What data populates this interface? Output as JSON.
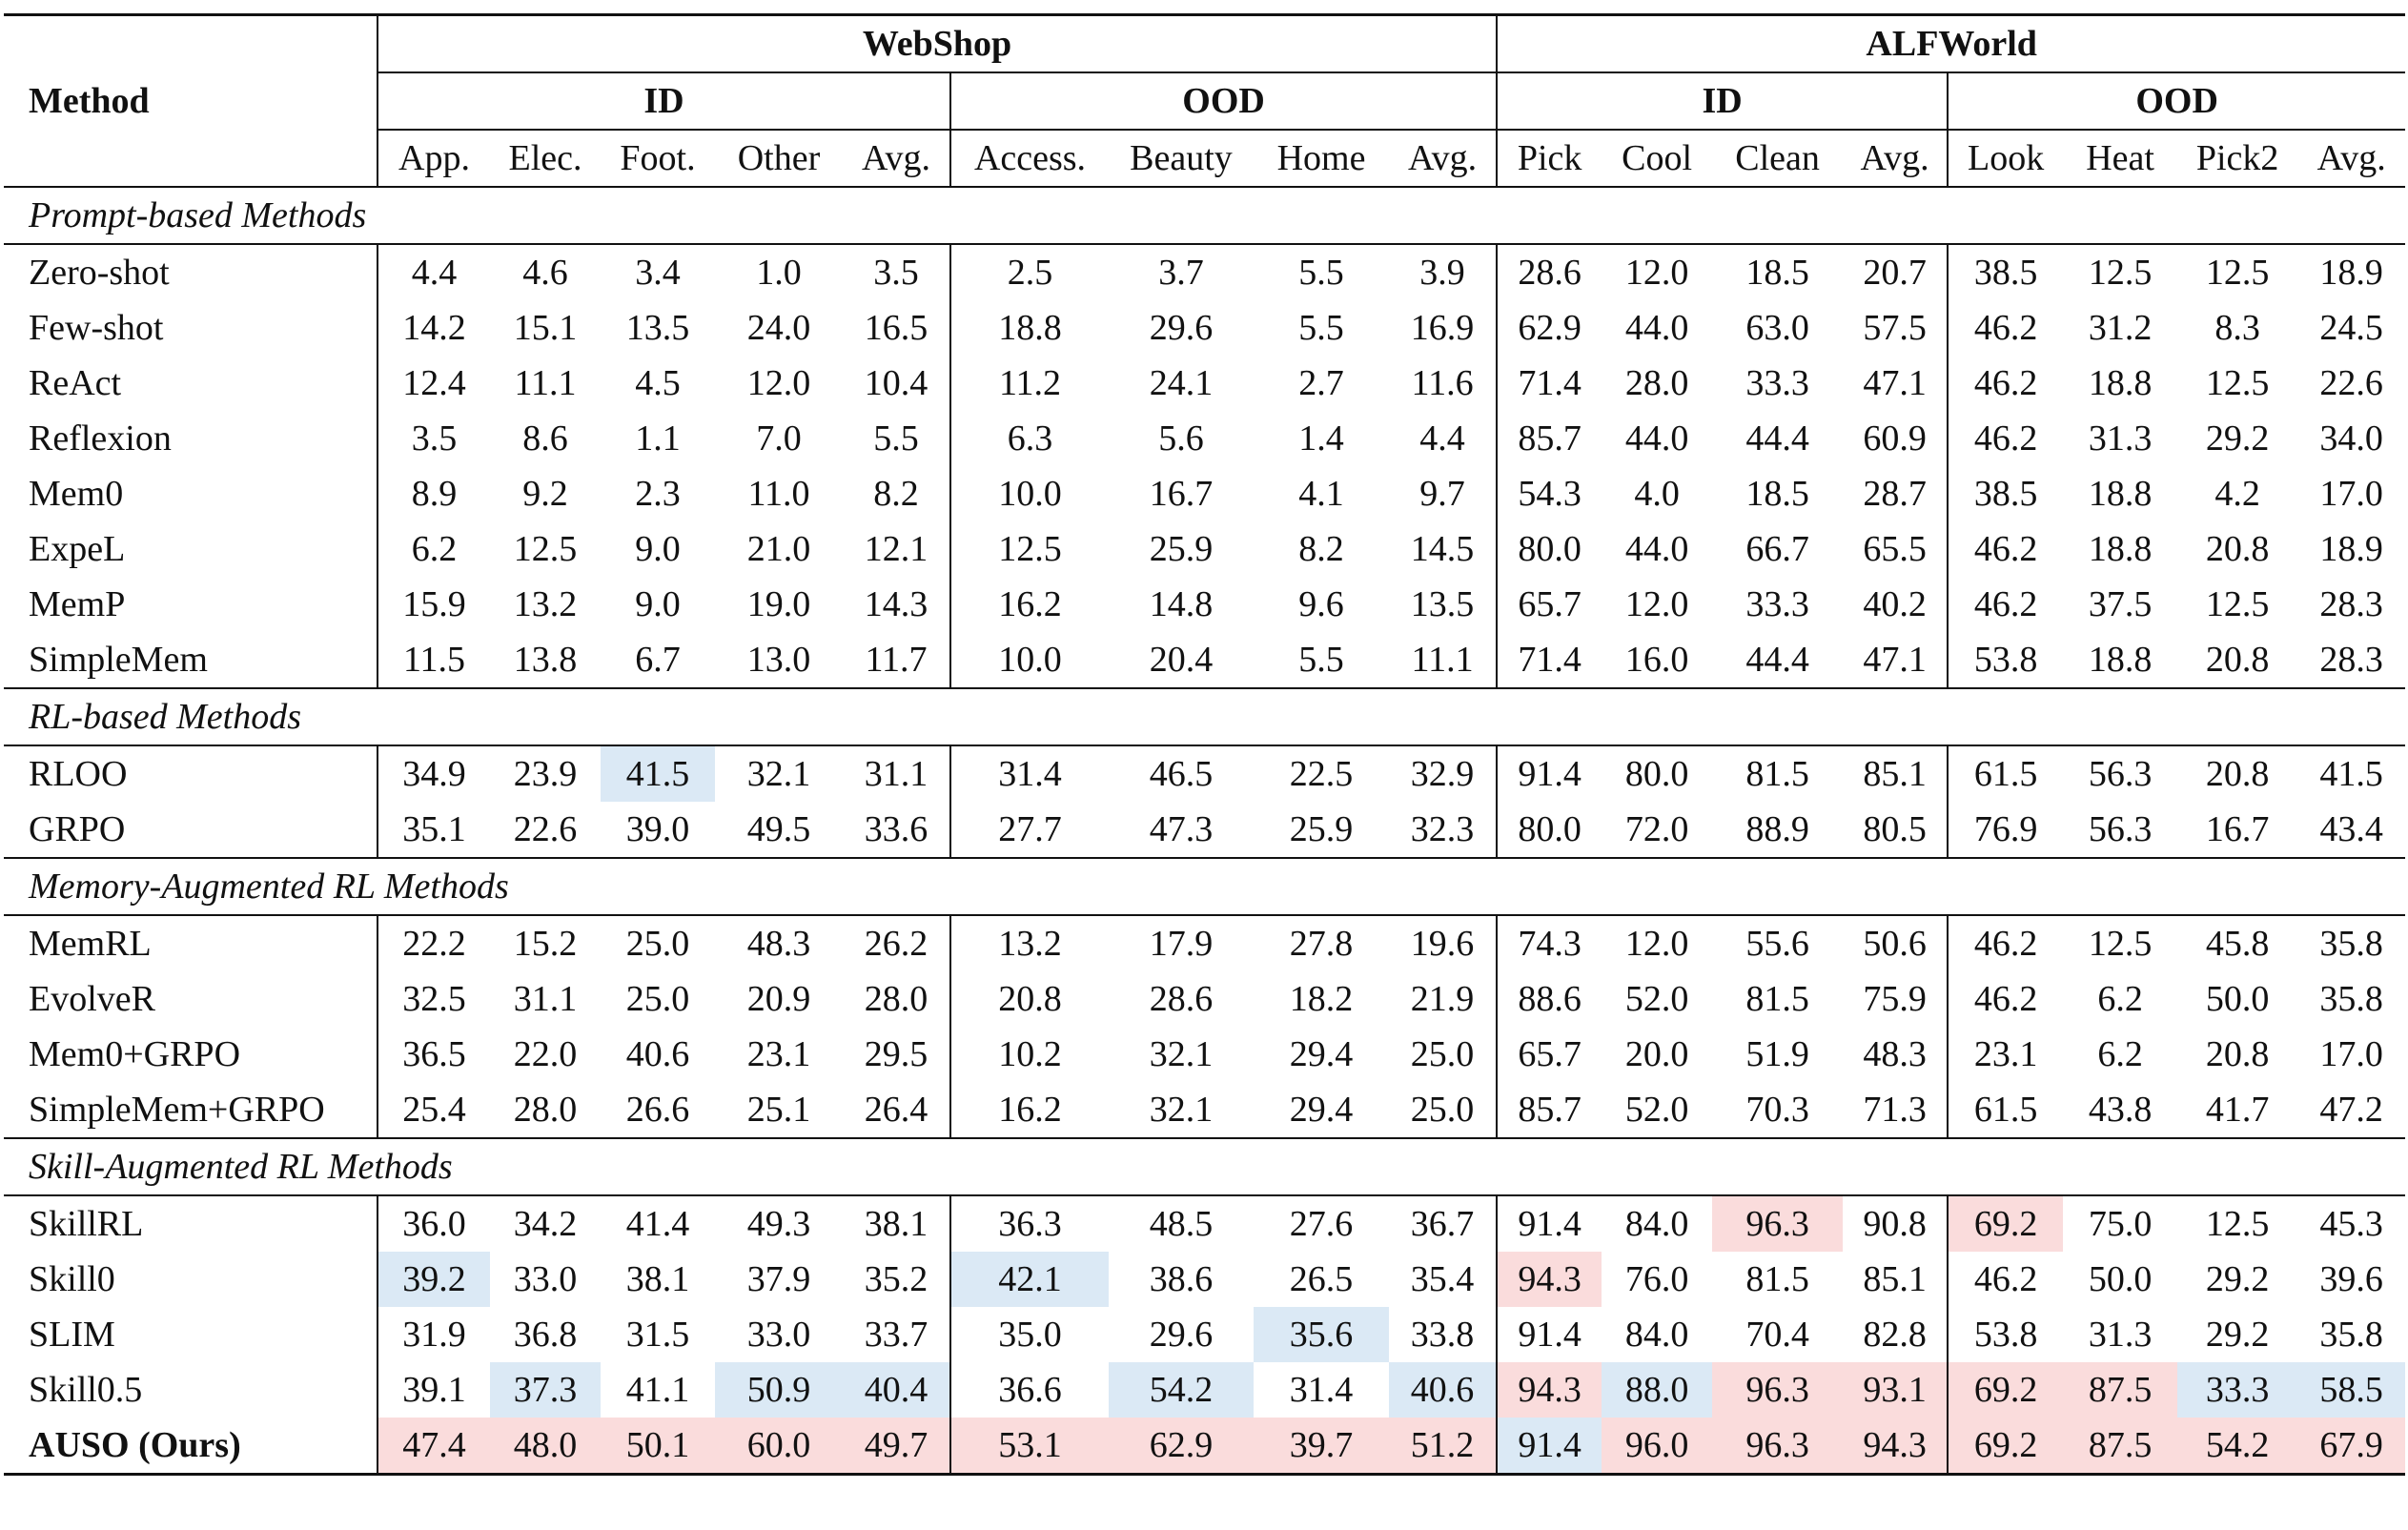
{
  "header": {
    "method": "Method",
    "datasets": [
      {
        "name": "WebShop",
        "splits": [
          {
            "name": "ID",
            "columns": [
              "App.",
              "Elec.",
              "Foot.",
              "Other",
              "Avg."
            ]
          },
          {
            "name": "OOD",
            "columns": [
              "Access.",
              "Beauty",
              "Home",
              "Avg."
            ]
          }
        ]
      },
      {
        "name": "ALFWorld",
        "splits": [
          {
            "name": "ID",
            "columns": [
              "Pick",
              "Cool",
              "Clean",
              "Avg."
            ]
          },
          {
            "name": "OOD",
            "columns": [
              "Look",
              "Heat",
              "Pick2",
              "Avg."
            ]
          }
        ]
      }
    ]
  },
  "groups": [
    {
      "title": "Prompt-based Methods",
      "rows": [
        {
          "method": "Zero-shot",
          "values": [
            "4.4",
            "4.6",
            "3.4",
            "1.0",
            "3.5",
            "2.5",
            "3.7",
            "5.5",
            "3.9",
            "28.6",
            "12.0",
            "18.5",
            "20.7",
            "38.5",
            "12.5",
            "12.5",
            "18.9"
          ]
        },
        {
          "method": "Few-shot",
          "values": [
            "14.2",
            "15.1",
            "13.5",
            "24.0",
            "16.5",
            "18.8",
            "29.6",
            "5.5",
            "16.9",
            "62.9",
            "44.0",
            "63.0",
            "57.5",
            "46.2",
            "31.2",
            "8.3",
            "24.5"
          ]
        },
        {
          "method": "ReAct",
          "values": [
            "12.4",
            "11.1",
            "4.5",
            "12.0",
            "10.4",
            "11.2",
            "24.1",
            "2.7",
            "11.6",
            "71.4",
            "28.0",
            "33.3",
            "47.1",
            "46.2",
            "18.8",
            "12.5",
            "22.6"
          ]
        },
        {
          "method": "Reflexion",
          "values": [
            "3.5",
            "8.6",
            "1.1",
            "7.0",
            "5.5",
            "6.3",
            "5.6",
            "1.4",
            "4.4",
            "85.7",
            "44.0",
            "44.4",
            "60.9",
            "46.2",
            "31.3",
            "29.2",
            "34.0"
          ]
        },
        {
          "method": "Mem0",
          "values": [
            "8.9",
            "9.2",
            "2.3",
            "11.0",
            "8.2",
            "10.0",
            "16.7",
            "4.1",
            "9.7",
            "54.3",
            "4.0",
            "18.5",
            "28.7",
            "38.5",
            "18.8",
            "4.2",
            "17.0"
          ]
        },
        {
          "method": "ExpeL",
          "values": [
            "6.2",
            "12.5",
            "9.0",
            "21.0",
            "12.1",
            "12.5",
            "25.9",
            "8.2",
            "14.5",
            "80.0",
            "44.0",
            "66.7",
            "65.5",
            "46.2",
            "18.8",
            "20.8",
            "18.9"
          ]
        },
        {
          "method": "MemP",
          "values": [
            "15.9",
            "13.2",
            "9.0",
            "19.0",
            "14.3",
            "16.2",
            "14.8",
            "9.6",
            "13.5",
            "65.7",
            "12.0",
            "33.3",
            "40.2",
            "46.2",
            "37.5",
            "12.5",
            "28.3"
          ]
        },
        {
          "method": "SimpleMem",
          "values": [
            "11.5",
            "13.8",
            "6.7",
            "13.0",
            "11.7",
            "10.0",
            "20.4",
            "5.5",
            "11.1",
            "71.4",
            "16.0",
            "44.4",
            "47.1",
            "53.8",
            "18.8",
            "20.8",
            "28.3"
          ]
        }
      ]
    },
    {
      "title": "RL-based Methods",
      "rows": [
        {
          "method": "RLOO",
          "values": [
            "34.9",
            "23.9",
            "41.5",
            "32.1",
            "31.1",
            "31.4",
            "46.5",
            "22.5",
            "32.9",
            "91.4",
            "80.0",
            "81.5",
            "85.1",
            "61.5",
            "56.3",
            "20.8",
            "41.5"
          ],
          "colors": [
            null,
            null,
            "#dbe9f5",
            null,
            null,
            null,
            null,
            null,
            null,
            null,
            null,
            null,
            null,
            null,
            null,
            null,
            null
          ]
        },
        {
          "method": "GRPO",
          "values": [
            "35.1",
            "22.6",
            "39.0",
            "49.5",
            "33.6",
            "27.7",
            "47.3",
            "25.9",
            "32.3",
            "80.0",
            "72.0",
            "88.9",
            "80.5",
            "76.9",
            "56.3",
            "16.7",
            "43.4"
          ]
        }
      ]
    },
    {
      "title": "Memory-Augmented RL Methods",
      "rows": [
        {
          "method": "MemRL",
          "values": [
            "22.2",
            "15.2",
            "25.0",
            "48.3",
            "26.2",
            "13.2",
            "17.9",
            "27.8",
            "19.6",
            "74.3",
            "12.0",
            "55.6",
            "50.6",
            "46.2",
            "12.5",
            "45.8",
            "35.8"
          ]
        },
        {
          "method": "EvolveR",
          "values": [
            "32.5",
            "31.1",
            "25.0",
            "20.9",
            "28.0",
            "20.8",
            "28.6",
            "18.2",
            "21.9",
            "88.6",
            "52.0",
            "81.5",
            "75.9",
            "46.2",
            "6.2",
            "50.0",
            "35.8"
          ]
        },
        {
          "method": "Mem0+GRPO",
          "values": [
            "36.5",
            "22.0",
            "40.6",
            "23.1",
            "29.5",
            "10.2",
            "32.1",
            "29.4",
            "25.0",
            "65.7",
            "20.0",
            "51.9",
            "48.3",
            "23.1",
            "6.2",
            "20.8",
            "17.0"
          ]
        },
        {
          "method": "SimpleMem+GRPO",
          "values": [
            "25.4",
            "28.0",
            "26.6",
            "25.1",
            "26.4",
            "16.2",
            "32.1",
            "29.4",
            "25.0",
            "85.7",
            "52.0",
            "70.3",
            "71.3",
            "61.5",
            "43.8",
            "41.7",
            "47.2"
          ]
        }
      ]
    },
    {
      "title": "Skill-Augmented RL Methods",
      "rows": [
        {
          "method": "SkillRL",
          "values": [
            "36.0",
            "34.2",
            "41.4",
            "49.3",
            "38.1",
            "36.3",
            "48.5",
            "27.6",
            "36.7",
            "91.4",
            "84.0",
            "96.3",
            "90.8",
            "69.2",
            "75.0",
            "12.5",
            "45.3"
          ],
          "colors": [
            null,
            null,
            null,
            null,
            null,
            null,
            null,
            null,
            null,
            null,
            null,
            "#fadcdc",
            null,
            "#fadcdc",
            null,
            null,
            null
          ]
        },
        {
          "method": "Skill0",
          "values": [
            "39.2",
            "33.0",
            "38.1",
            "37.9",
            "35.2",
            "42.1",
            "38.6",
            "26.5",
            "35.4",
            "94.3",
            "76.0",
            "81.5",
            "85.1",
            "46.2",
            "50.0",
            "29.2",
            "39.6"
          ],
          "colors": [
            "#dbe9f5",
            null,
            null,
            null,
            null,
            "#dbe9f5",
            null,
            null,
            null,
            "#fadcdc",
            null,
            null,
            null,
            null,
            null,
            null,
            null
          ]
        },
        {
          "method": "SLIM",
          "values": [
            "31.9",
            "36.8",
            "31.5",
            "33.0",
            "33.7",
            "35.0",
            "29.6",
            "35.6",
            "33.8",
            "91.4",
            "84.0",
            "70.4",
            "82.8",
            "53.8",
            "31.3",
            "29.2",
            "35.8"
          ],
          "colors": [
            null,
            null,
            null,
            null,
            null,
            null,
            null,
            "#dbe9f5",
            null,
            null,
            null,
            null,
            null,
            null,
            null,
            null,
            null
          ]
        },
        {
          "method": "Skill0.5",
          "values": [
            "39.1",
            "37.3",
            "41.1",
            "50.9",
            "40.4",
            "36.6",
            "54.2",
            "31.4",
            "40.6",
            "94.3",
            "88.0",
            "96.3",
            "93.1",
            "69.2",
            "87.5",
            "33.3",
            "58.5"
          ],
          "colors": [
            null,
            "#dbe9f5",
            null,
            "#dbe9f5",
            "#dbe9f5",
            null,
            "#dbe9f5",
            null,
            "#dbe9f5",
            "#fadcdc",
            "#dbe9f5",
            "#fadcdc",
            "#fadcdc",
            "#fadcdc",
            "#fadcdc",
            "#dbe9f5",
            "#dbe9f5"
          ]
        },
        {
          "method": "AUSO (Ours)",
          "bold": true,
          "values": [
            "47.4",
            "48.0",
            "50.1",
            "60.0",
            "49.7",
            "53.1",
            "62.9",
            "39.7",
            "51.2",
            "91.4",
            "96.0",
            "96.3",
            "94.3",
            "69.2",
            "87.5",
            "54.2",
            "67.9"
          ],
          "colors": [
            "#fadcdc",
            "#fadcdc",
            "#fadcdc",
            "#fadcdc",
            "#fadcdc",
            "#fadcdc",
            "#fadcdc",
            "#fadcdc",
            "#fadcdc",
            "#dbe9f5",
            "#fadcdc",
            "#fadcdc",
            "#fadcdc",
            "#fadcdc",
            "#fadcdc",
            "#fadcdc",
            "#fadcdc"
          ]
        }
      ]
    }
  ]
}
